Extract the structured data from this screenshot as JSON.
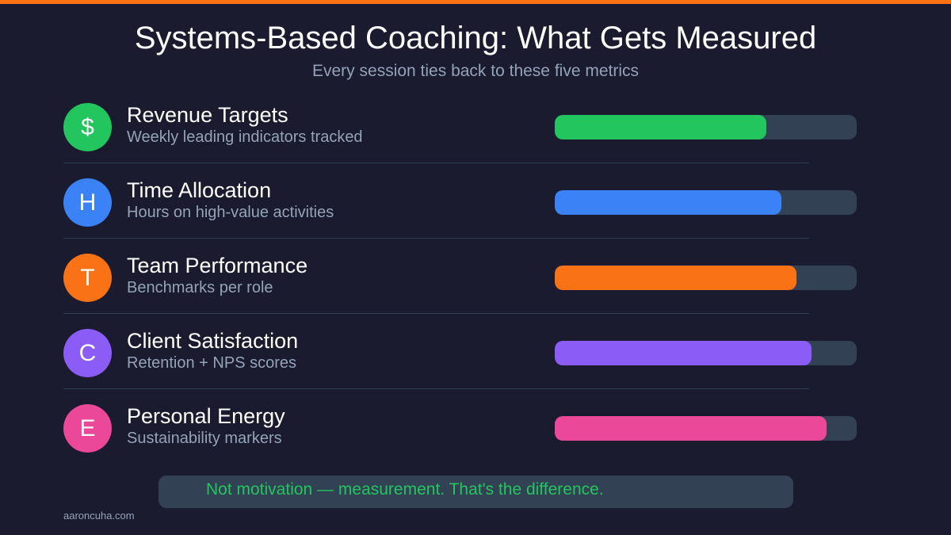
{
  "colors": {
    "background": "#1a1b2e",
    "accent_bar": "#f97316",
    "track": "#334155",
    "muted_text": "#94a3b8"
  },
  "header": {
    "title": "Systems-Based Coaching: What Gets Measured",
    "subtitle": "Every session ties back to these five metrics"
  },
  "metrics": [
    {
      "icon": "$",
      "icon_name": "dollar-icon",
      "label": "Revenue Targets",
      "description": "Weekly leading indicators tracked",
      "value": 70,
      "color": "#22c55e"
    },
    {
      "icon": "H",
      "icon_name": "letter-h-icon",
      "label": "Time Allocation",
      "description": "Hours on high-value activities",
      "value": 75,
      "color": "#3b82f6"
    },
    {
      "icon": "T",
      "icon_name": "letter-t-icon",
      "label": "Team Performance",
      "description": "Benchmarks per role",
      "value": 80,
      "color": "#f97316"
    },
    {
      "icon": "C",
      "icon_name": "letter-c-icon",
      "label": "Client Satisfaction",
      "description": "Retention + NPS scores",
      "value": 85,
      "color": "#8b5cf6"
    },
    {
      "icon": "E",
      "icon_name": "letter-e-icon",
      "label": "Personal Energy",
      "description": "Sustainability markers",
      "value": 90,
      "color": "#ec4899"
    }
  ],
  "callout": {
    "text": "Not motivation — measurement. That's the difference.",
    "color": "#22c55e"
  },
  "footer": {
    "site": "aaroncuha.com"
  },
  "chart_data": {
    "type": "bar",
    "orientation": "horizontal",
    "title": "Systems-Based Coaching: What Gets Measured",
    "subtitle": "Every session ties back to these five metrics",
    "categories": [
      "Revenue Targets",
      "Time Allocation",
      "Team Performance",
      "Client Satisfaction",
      "Personal Energy"
    ],
    "values": [
      70,
      75,
      80,
      85,
      90
    ],
    "colors": [
      "#22c55e",
      "#3b82f6",
      "#f97316",
      "#8b5cf6",
      "#ec4899"
    ],
    "xlabel": "",
    "ylabel": "",
    "xlim": [
      0,
      100
    ],
    "grid": false,
    "legend": "none"
  }
}
